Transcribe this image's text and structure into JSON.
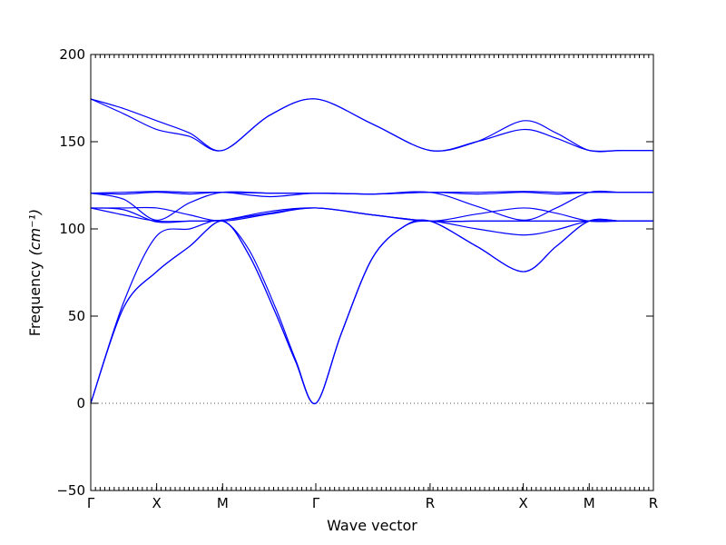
{
  "chart_data": {
    "type": "line",
    "title": "",
    "xlabel": "Wave vector",
    "ylabel": "Frequency",
    "ylabel_unit": "(cm⁻¹)",
    "ylim": [
      -50,
      200
    ],
    "yticks": [
      -50,
      0,
      50,
      100,
      150,
      200
    ],
    "ytick_labels": [
      "−50",
      "0",
      "50",
      "100",
      "150",
      "200"
    ],
    "xlim": [
      0,
      6.4
    ],
    "xticks": [
      {
        "label": "Γ",
        "x": 0
      },
      {
        "label": "X",
        "x": 0.75
      },
      {
        "label": "M",
        "x": 1.5
      },
      {
        "label": "Γ",
        "x": 2.56
      },
      {
        "label": "R",
        "x": 3.86
      },
      {
        "label": "X",
        "x": 4.92
      },
      {
        "label": "M",
        "x": 5.67
      },
      {
        "label": "R",
        "x": 6.4
      }
    ],
    "line_color": "#0000ff",
    "zero_line": true,
    "series": [
      {
        "x": [
          0,
          0.375,
          0.75,
          1.125,
          1.5,
          2.03,
          2.56,
          3.21,
          3.86,
          4.39,
          4.92,
          5.295,
          5.67,
          6.035,
          6.4
        ],
        "y": [
          174.5,
          169,
          162,
          155,
          145,
          165,
          174.5,
          160,
          145,
          150,
          162,
          155,
          145,
          145,
          145
        ]
      },
      {
        "x": [
          0,
          0.375,
          0.75,
          1.125,
          1.5,
          2.03,
          2.56,
          3.21,
          3.86,
          4.39,
          4.92,
          5.295,
          5.67,
          6.035,
          6.4
        ],
        "y": [
          174.5,
          166,
          157,
          153,
          145,
          165,
          174.5,
          160,
          145,
          150,
          157,
          152,
          145,
          145,
          145
        ]
      },
      {
        "x": [
          0,
          0.375,
          0.75,
          1.125,
          1.5,
          2.03,
          2.56,
          3.21,
          3.86,
          4.39,
          4.92,
          5.295,
          5.67,
          6.035,
          6.4
        ],
        "y": [
          120.5,
          121,
          121.5,
          121,
          121,
          120.5,
          120.5,
          120,
          121,
          121,
          121.5,
          121,
          121,
          121,
          121
        ]
      },
      {
        "x": [
          0,
          0.375,
          0.75,
          1.125,
          1.5,
          2.03,
          2.56,
          3.21,
          3.86,
          4.39,
          4.92,
          5.295,
          5.67,
          6.035,
          6.4
        ],
        "y": [
          120.5,
          117,
          105,
          115,
          121,
          120.5,
          120.5,
          120,
          121,
          113,
          105,
          112,
          121,
          121,
          121
        ]
      },
      {
        "x": [
          0,
          0.375,
          0.75,
          1.125,
          1.5,
          2.03,
          2.56,
          3.21,
          3.86,
          4.39,
          4.92,
          5.295,
          5.67,
          6.035,
          6.4
        ],
        "y": [
          120.5,
          120,
          121,
          120,
          121,
          118.5,
          120.5,
          120,
          121,
          120,
          121,
          120,
          121,
          121,
          121
        ]
      },
      {
        "x": [
          0,
          0.375,
          0.75,
          1.125,
          1.5,
          2.03,
          2.56,
          3.21,
          3.86,
          4.39,
          4.92,
          5.295,
          5.67,
          6.035,
          6.4
        ],
        "y": [
          112,
          111,
          104,
          104.5,
          105,
          110,
          112,
          108,
          104.5,
          104.5,
          104.5,
          104.5,
          104.5,
          104.5,
          104.5
        ]
      },
      {
        "x": [
          0,
          0.375,
          0.75,
          1.125,
          1.5,
          2.03,
          2.56,
          3.21,
          3.86,
          4.39,
          4.92,
          5.295,
          5.67,
          6.035,
          6.4
        ],
        "y": [
          112,
          112,
          112,
          108,
          104.5,
          108.5,
          112,
          108,
          104.5,
          108.5,
          112,
          109,
          104.5,
          104.5,
          104.5
        ]
      },
      {
        "x": [
          0,
          0.375,
          0.75,
          1.125,
          1.5,
          2.03,
          2.56,
          3.21,
          3.86,
          4.39,
          4.92,
          5.295,
          5.67,
          6.035,
          6.4
        ],
        "y": [
          112,
          108,
          104.5,
          104.5,
          105,
          109,
          112,
          108,
          104.5,
          104.5,
          104.5,
          104.5,
          104.5,
          104.5,
          104.5
        ]
      },
      {
        "x": [
          0,
          0.375,
          0.75,
          1.125,
          1.5,
          1.8,
          2.1,
          2.33,
          2.56,
          2.85,
          3.2,
          3.55,
          3.86,
          4.39,
          4.92,
          5.295,
          5.67,
          6.035,
          6.4
        ],
        "y": [
          0,
          58,
          96,
          100,
          104.5,
          88,
          55,
          25,
          0,
          40,
          83,
          101,
          104.5,
          100,
          96.5,
          99.5,
          104.5,
          104.5,
          104.5
        ]
      },
      {
        "x": [
          0,
          0.375,
          0.75,
          1.125,
          1.5,
          1.8,
          2.1,
          2.33,
          2.56,
          2.85,
          3.2,
          3.55,
          3.86,
          4.39,
          4.92,
          5.295,
          5.67,
          6.035,
          6.4
        ],
        "y": [
          0,
          55,
          75.5,
          90,
          104.5,
          85,
          52,
          24,
          0,
          40,
          83,
          101,
          104.5,
          90,
          75.5,
          90,
          104.5,
          104.5,
          104.5
        ]
      },
      {
        "x": [
          0,
          0.375,
          0.75,
          1.125,
          1.5,
          1.8,
          2.1,
          2.33,
          2.56,
          2.85,
          3.2,
          3.55,
          3.86,
          4.39,
          4.92,
          5.295,
          5.67,
          6.035,
          6.4
        ],
        "y": [
          0,
          55,
          75.5,
          90,
          104.5,
          85,
          52,
          24,
          0,
          40,
          83,
          101,
          104.5,
          90,
          75.5,
          90,
          104.5,
          104.5,
          104.5
        ]
      }
    ]
  }
}
